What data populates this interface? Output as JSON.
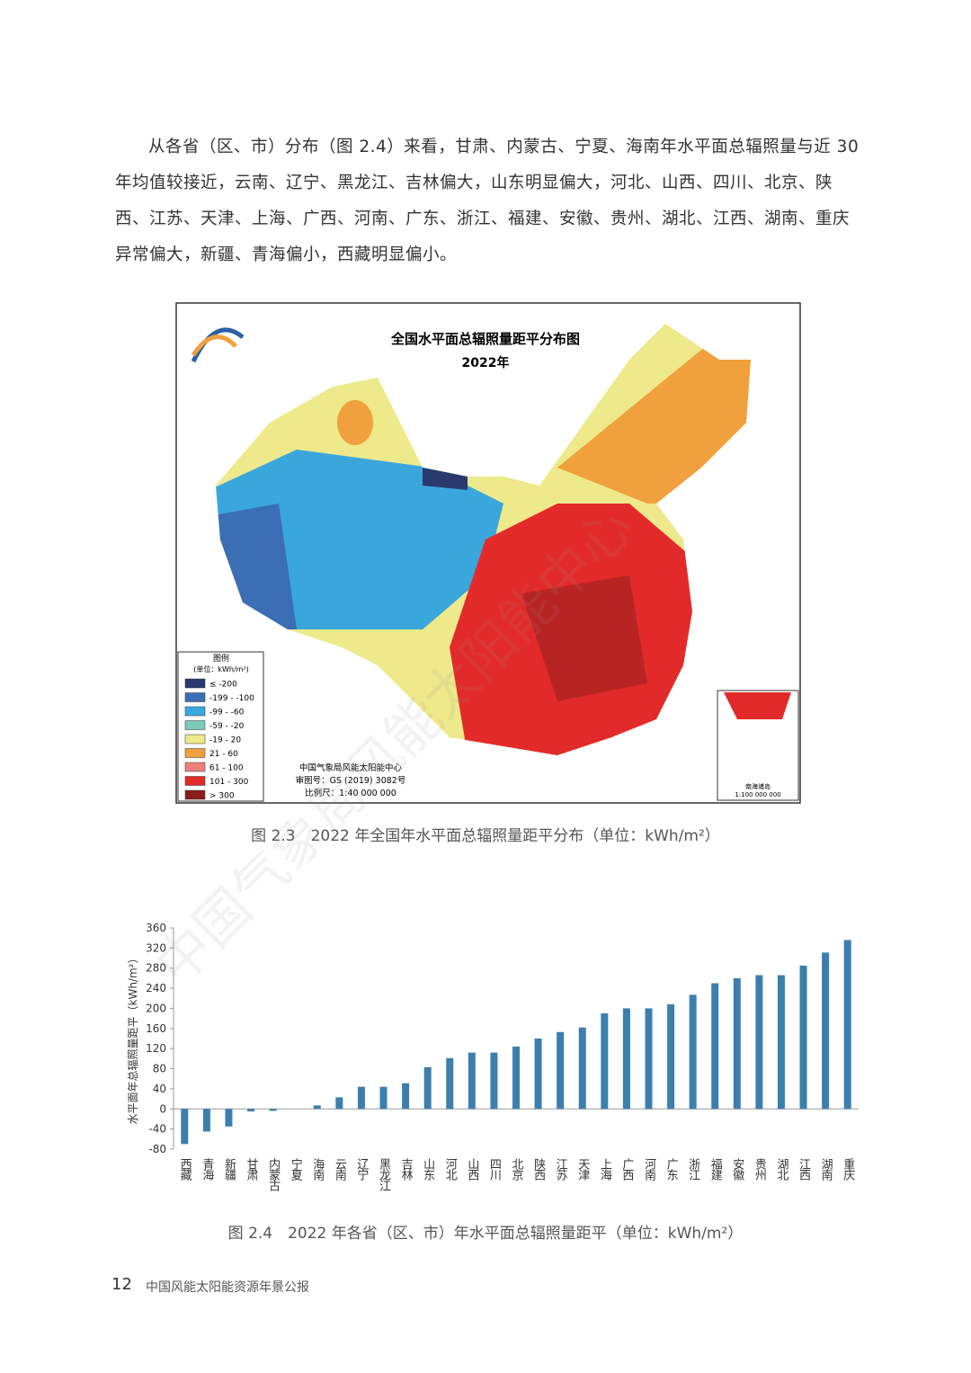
{
  "paragraph": "从各省（区、市）分布（图 2.4）来看，甘肃、内蒙古、宁夏、海南年水平面总辐照量与近 30 年均值较接近，云南、辽宁、黑龙江、吉林偏大，山东明显偏大，河北、山西、四川、北京、陕西、江苏、天津、上海、广西、河南、广东、浙江、福建、安徽、贵州、湖北、江西、湖南、重庆异常偏大，新疆、青海偏小，西藏明显偏小。",
  "map": {
    "title": "全国水平面总辐照量距平分布图",
    "year": "2022年",
    "legend_title": "图例",
    "legend_unit": "(单位：kWh/m²)",
    "legend": [
      {
        "label": "≤ -200",
        "color": "#2b3a6e"
      },
      {
        "label": "-199 - -100",
        "color": "#3b6eb4"
      },
      {
        "label": "-99 - -60",
        "color": "#3aa7dc"
      },
      {
        "label": "-59 - -20",
        "color": "#7cc9b8"
      },
      {
        "label": "-19 - 20",
        "color": "#eee98a"
      },
      {
        "label": "21 - 60",
        "color": "#f0a03c"
      },
      {
        "label": "61 - 100",
        "color": "#ef7f7a"
      },
      {
        "label": "101 - 300",
        "color": "#e32a2a"
      },
      {
        "label": "> 300",
        "color": "#8b1c1c"
      }
    ],
    "credits": [
      "中国气象局风能太阳能中心",
      "审图号：GS (2019) 3082号",
      "比例尺：1:40 000 000"
    ],
    "inset": [
      "南海诸岛",
      "1:100 000 000"
    ],
    "caption": "图 2.3　2022 年全国年水平面总辐照量距平分布（单位：kWh/m²）"
  },
  "watermark": "中国气象局风能太阳能中心",
  "chart_data": {
    "type": "bar",
    "ylabel": "水平面年总辐照量距平（kWh/m²）",
    "categories": [
      "西藏",
      "青海",
      "新疆",
      "甘肃",
      "内蒙古",
      "宁夏",
      "海南",
      "云南",
      "辽宁",
      "黑龙江",
      "吉林",
      "山东",
      "河北",
      "山西",
      "四川",
      "北京",
      "陕西",
      "江苏",
      "天津",
      "上海",
      "广西",
      "河南",
      "广东",
      "浙江",
      "福建",
      "安徽",
      "贵州",
      "湖北",
      "江西",
      "湖南",
      "重庆"
    ],
    "values": [
      -70,
      -45,
      -35,
      -5,
      -4,
      0,
      7,
      23,
      44,
      44,
      51,
      83,
      101,
      112,
      112,
      124,
      140,
      153,
      162,
      190,
      200,
      200,
      208,
      227,
      250,
      260,
      266,
      266,
      285,
      311,
      336
    ],
    "color": "#3c7fae",
    "ylim": [
      -80,
      360
    ],
    "yticks": [
      -80,
      -40,
      0,
      40,
      80,
      120,
      160,
      200,
      240,
      280,
      320,
      360
    ],
    "caption": "图 2.4　2022 年各省（区、市）年水平面总辐照量距平（单位：kWh/m²）"
  },
  "footer": {
    "page": "12",
    "title": "中国风能太阳能资源年景公报"
  }
}
